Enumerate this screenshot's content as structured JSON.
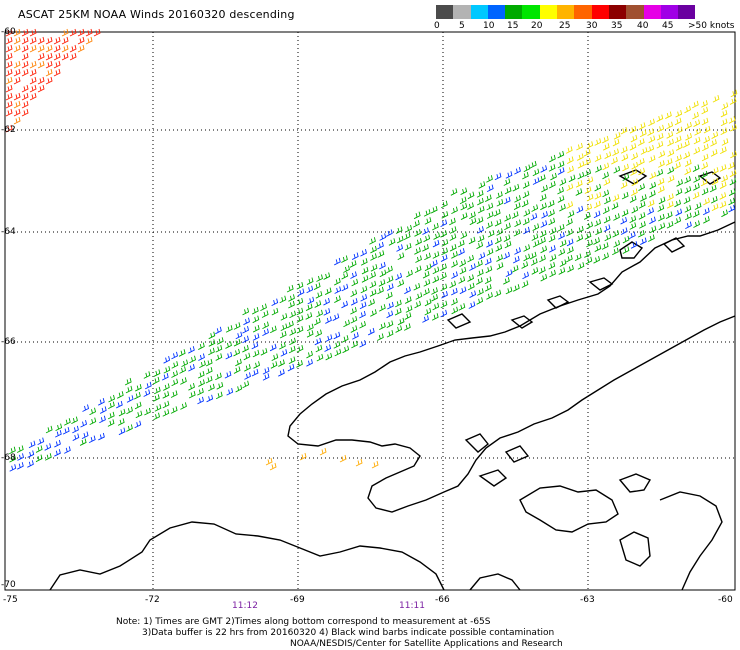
{
  "title": "ASCAT 25KM NOAA Winds 20160320 descending",
  "scale": {
    "labels": [
      "0",
      "5",
      "10",
      "15",
      "20",
      "25",
      "30",
      "35",
      "40",
      "45",
      ">50 knots"
    ],
    "colors": [
      "#4b4b4b",
      "#b3b3b3",
      "#00c8ff",
      "#0064ff",
      "#00aa00",
      "#00e600",
      "#ffff00",
      "#ffb400",
      "#ff6400",
      "#ff0000",
      "#8c0000",
      "#a05030",
      "#e600e6",
      "#a000e6",
      "#6a00a0"
    ]
  },
  "lat_labels": [
    "-60",
    "-62",
    "-64",
    "-66",
    "-68",
    "-70"
  ],
  "lon_labels": [
    "-75",
    "-72",
    "-69",
    "-66",
    "-63",
    "-60"
  ],
  "times": [
    "11:12",
    "11:11"
  ],
  "notes": [
    "Note: 1) Times are GMT 2)Times along bottom correspond to measurement at -65S",
    "3)Data buffer is 22 hrs from 20160320 4) Black wind barbs indicate possible contamination",
    "NOAA/NESDIS/Center for Satellite Applications and Research"
  ]
}
